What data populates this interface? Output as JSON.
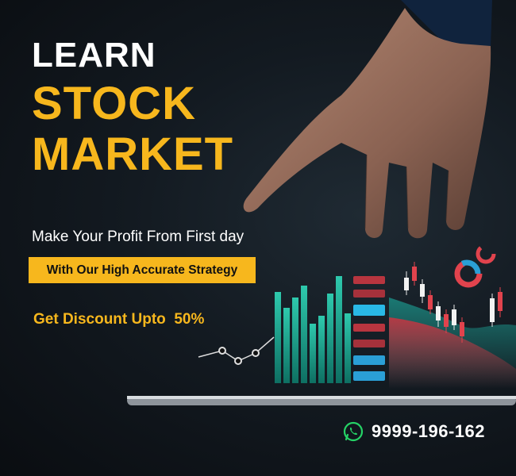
{
  "headline": {
    "line1": "LEARN",
    "line2": "STOCK",
    "line3": "MARKET"
  },
  "subheadline": "Make Your Profit From First day",
  "strategy_badge": "With Our High Accurate Strategy",
  "discount": "Get Discount Upto  50%",
  "contact": {
    "icon": "whatsapp-icon",
    "phone": "9999-196-162"
  },
  "colors": {
    "accent": "#f7b71d",
    "background": "#131a21",
    "bars": "#1fb59c",
    "candle_up": "#2fd08c",
    "candle_down": "#e1434d",
    "whatsapp": "#25d366"
  }
}
